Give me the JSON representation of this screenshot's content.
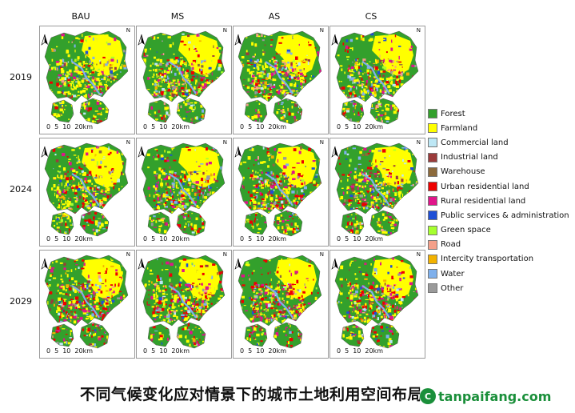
{
  "columns": [
    "BAU",
    "MS",
    "AS",
    "CS"
  ],
  "rows": [
    "2019",
    "2024",
    "2029"
  ],
  "north_label": "N",
  "scale_labels": [
    "0",
    "5",
    "10",
    "20km"
  ],
  "legend": [
    {
      "label": "Forest",
      "color": "#33a02c"
    },
    {
      "label": "Farmland",
      "color": "#ffff00"
    },
    {
      "label": "Commercial land",
      "color": "#bde7f5"
    },
    {
      "label": "Industrial land",
      "color": "#9b3b3b"
    },
    {
      "label": "Warehouse",
      "color": "#8c6a3c"
    },
    {
      "label": "Urban residential land",
      "color": "#ee0000"
    },
    {
      "label": "Rural residential land",
      "color": "#e0158a"
    },
    {
      "label": "Public services & administration",
      "color": "#1f4fd6"
    },
    {
      "label": "Green space",
      "color": "#a6ff2e"
    },
    {
      "label": "Road",
      "color": "#f4a08a"
    },
    {
      "label": "Intercity transportation",
      "color": "#f2b200"
    },
    {
      "label": "Water",
      "color": "#7fb0ec"
    },
    {
      "label": "Other",
      "color": "#9a9a9a"
    }
  ],
  "caption": "不同气候变化应对情景下的城市土地利用空间布局",
  "watermark": {
    "logo": "C",
    "text": "tanpaifang.com"
  }
}
